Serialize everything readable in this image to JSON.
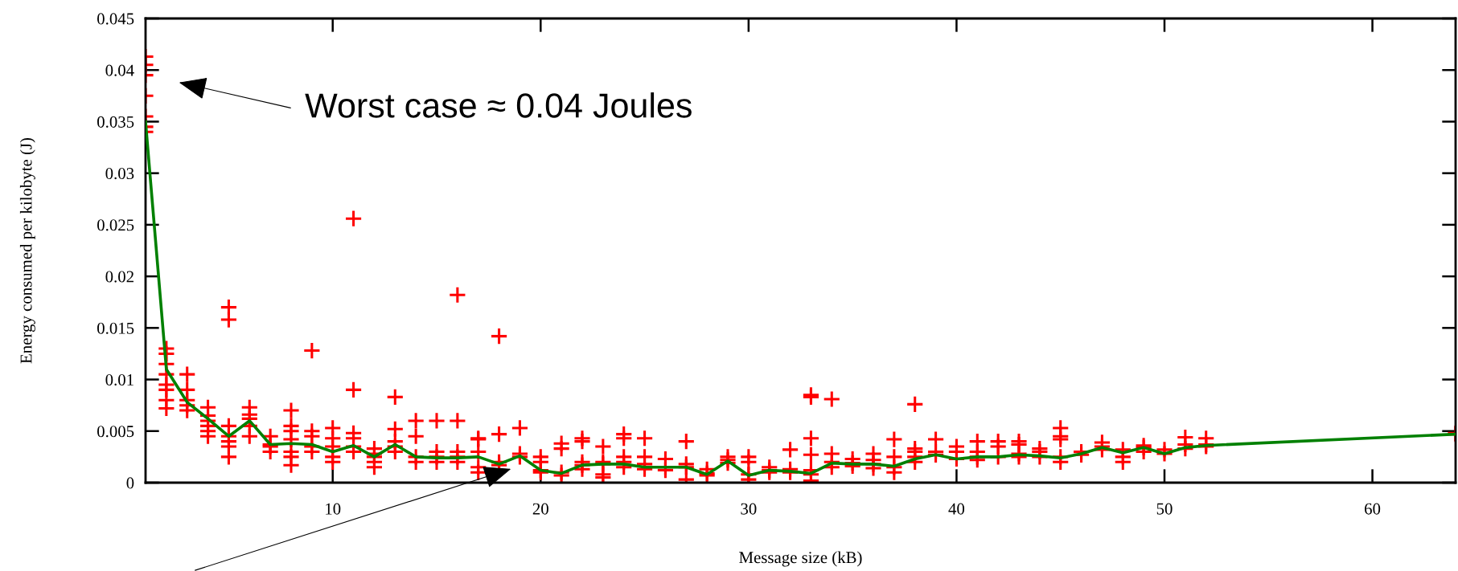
{
  "chart_data": {
    "type": "scatter",
    "xlabel": "Message size (kB)",
    "ylabel": "Energy consumed per kilobyte (J)",
    "xlim": [
      1,
      64
    ],
    "xticks": [
      10,
      20,
      30,
      40,
      50,
      60
    ],
    "ylim": [
      0,
      0.045
    ],
    "yticks": [
      0,
      0.005,
      0.01,
      0.015,
      0.02,
      0.025,
      0.03,
      0.035,
      0.04,
      0.045
    ],
    "grid": false,
    "legend": false,
    "annotations": [
      "Worst case ≈ 0.04 Joules"
    ],
    "series": [
      {
        "color": "#ff0000",
        "marker": "cross",
        "x": [
          1,
          1,
          1,
          1,
          1,
          1,
          1,
          2,
          2,
          2,
          2,
          2,
          2,
          2,
          2,
          3,
          3,
          3,
          3,
          3,
          4,
          4,
          4,
          4,
          4,
          4,
          5,
          5,
          5,
          5,
          5,
          5,
          5,
          6,
          6,
          6,
          6,
          6,
          7,
          7,
          7,
          7,
          8,
          8,
          8,
          8,
          8,
          8,
          8,
          9,
          9,
          9,
          9,
          9,
          10,
          10,
          10,
          10,
          10,
          11,
          11,
          11,
          11,
          11,
          11,
          12,
          12,
          12,
          12,
          12,
          13,
          13,
          13,
          13,
          13,
          14,
          14,
          14,
          14,
          15,
          15,
          15,
          15,
          16,
          16,
          16,
          16,
          16,
          17,
          17,
          17,
          17,
          17,
          18,
          18,
          18,
          18,
          19,
          19,
          19,
          20,
          20,
          20,
          20,
          21,
          21,
          21,
          21,
          22,
          22,
          22,
          22,
          22,
          23,
          23,
          23,
          23,
          23,
          24,
          24,
          24,
          24,
          24,
          25,
          25,
          25,
          25,
          26,
          26,
          26,
          27,
          27,
          27,
          27,
          28,
          28,
          28,
          29,
          29,
          29,
          30,
          30,
          30,
          30,
          31,
          31,
          31,
          32,
          32,
          32,
          33,
          33,
          33,
          33,
          33,
          33,
          33,
          34,
          34,
          34,
          34,
          35,
          35,
          35,
          36,
          36,
          36,
          36,
          37,
          37,
          37,
          37,
          38,
          38,
          38,
          38,
          38,
          39,
          39,
          39,
          40,
          40,
          40,
          41,
          41,
          41,
          41,
          42,
          42,
          42,
          43,
          43,
          43,
          43,
          44,
          44,
          44,
          45,
          45,
          45,
          45,
          45,
          46,
          46,
          47,
          47,
          47,
          48,
          48,
          48,
          49,
          49,
          49,
          50,
          50,
          51,
          51,
          51,
          52,
          52,
          52,
          64,
          64
        ],
        "values": [
          0.0413,
          0.0405,
          0.0395,
          0.0375,
          0.0355,
          0.0345,
          0.034,
          0.013,
          0.0125,
          0.0115,
          0.0105,
          0.0095,
          0.009,
          0.008,
          0.0072,
          0.0105,
          0.009,
          0.008,
          0.0075,
          0.007,
          0.0073,
          0.0065,
          0.006,
          0.0055,
          0.005,
          0.0045,
          0.017,
          0.0158,
          0.0055,
          0.0045,
          0.004,
          0.0035,
          0.0025,
          0.0073,
          0.0066,
          0.0062,
          0.0055,
          0.0045,
          0.0045,
          0.0037,
          0.0035,
          0.003,
          0.007,
          0.0055,
          0.005,
          0.0042,
          0.003,
          0.0025,
          0.0017,
          0.0128,
          0.005,
          0.0045,
          0.0035,
          0.003,
          0.0053,
          0.0043,
          0.0035,
          0.0025,
          0.002,
          0.0256,
          0.009,
          0.0048,
          0.0043,
          0.0035,
          0.003,
          0.0033,
          0.0028,
          0.0025,
          0.002,
          0.0015,
          0.0083,
          0.0052,
          0.004,
          0.0035,
          0.003,
          0.006,
          0.0045,
          0.0025,
          0.002,
          0.006,
          0.003,
          0.0025,
          0.002,
          0.0182,
          0.006,
          0.003,
          0.0025,
          0.002,
          0.0043,
          0.0042,
          0.003,
          0.0015,
          0.001,
          0.0142,
          0.0047,
          0.002,
          0.0017,
          0.0053,
          0.0028,
          0.0025,
          0.0025,
          0.002,
          0.0012,
          0.001,
          0.0038,
          0.0033,
          0.001,
          0.0007,
          0.0043,
          0.004,
          0.002,
          0.0017,
          0.0013,
          0.0035,
          0.002,
          0.0018,
          0.0008,
          0.0005,
          0.0047,
          0.0043,
          0.0025,
          0.002,
          0.0015,
          0.0043,
          0.0025,
          0.0018,
          0.0013,
          0.0023,
          0.0015,
          0.0012,
          0.004,
          0.0018,
          0.0015,
          0.0003,
          0.0013,
          0.0009,
          0.0007,
          0.0025,
          0.0022,
          0.0019,
          0.0025,
          0.002,
          0.0008,
          0.0003,
          0.0015,
          0.0012,
          0.001,
          0.0032,
          0.0013,
          0.001,
          0.0085,
          0.0083,
          0.0043,
          0.0027,
          0.0012,
          0.0008,
          0.0002,
          0.0081,
          0.0028,
          0.002,
          0.0015,
          0.0023,
          0.0019,
          0.0016,
          0.0028,
          0.0022,
          0.0018,
          0.0014,
          0.0042,
          0.0025,
          0.0015,
          0.001,
          0.0076,
          0.0033,
          0.003,
          0.0025,
          0.002,
          0.0042,
          0.003,
          0.0027,
          0.0035,
          0.003,
          0.0023,
          0.004,
          0.003,
          0.0025,
          0.0022,
          0.004,
          0.0035,
          0.0025,
          0.004,
          0.0037,
          0.0028,
          0.0025,
          0.0033,
          0.003,
          0.0025,
          0.0053,
          0.0045,
          0.0042,
          0.0025,
          0.002,
          0.003,
          0.0027,
          0.0039,
          0.0035,
          0.0032,
          0.0032,
          0.0025,
          0.002,
          0.0036,
          0.0034,
          0.003,
          0.0032,
          0.0028,
          0.0044,
          0.0037,
          0.0033,
          0.0043,
          0.0037,
          0.0035,
          0.0048,
          0.0047
        ]
      },
      {
        "type": "line",
        "color": "#008000",
        "marker": "none",
        "line_style": "solid",
        "x": [
          1,
          2,
          3,
          4,
          5,
          6,
          7,
          8,
          9,
          10,
          11,
          12,
          13,
          14,
          15,
          16,
          17,
          18,
          19,
          20,
          21,
          22,
          23,
          24,
          25,
          26,
          27,
          28,
          29,
          30,
          31,
          32,
          33,
          34,
          35,
          36,
          37,
          38,
          39,
          40,
          41,
          42,
          43,
          44,
          45,
          46,
          47,
          48,
          49,
          50,
          51,
          52,
          64
        ],
        "values": [
          0.035,
          0.011,
          0.0078,
          0.0062,
          0.0045,
          0.006,
          0.0037,
          0.0038,
          0.0037,
          0.003,
          0.0036,
          0.0025,
          0.0037,
          0.0025,
          0.0024,
          0.0024,
          0.0025,
          0.0018,
          0.0026,
          0.0012,
          0.0009,
          0.0017,
          0.0018,
          0.0018,
          0.0015,
          0.0015,
          0.0015,
          0.0008,
          0.0021,
          0.0007,
          0.0012,
          0.0011,
          0.0009,
          0.0019,
          0.0018,
          0.0018,
          0.0016,
          0.0023,
          0.0027,
          0.0023,
          0.0025,
          0.0025,
          0.0027,
          0.0026,
          0.0024,
          0.0028,
          0.0034,
          0.0029,
          0.0034,
          0.0028,
          0.0034,
          0.0036,
          0.0047
        ]
      }
    ]
  }
}
